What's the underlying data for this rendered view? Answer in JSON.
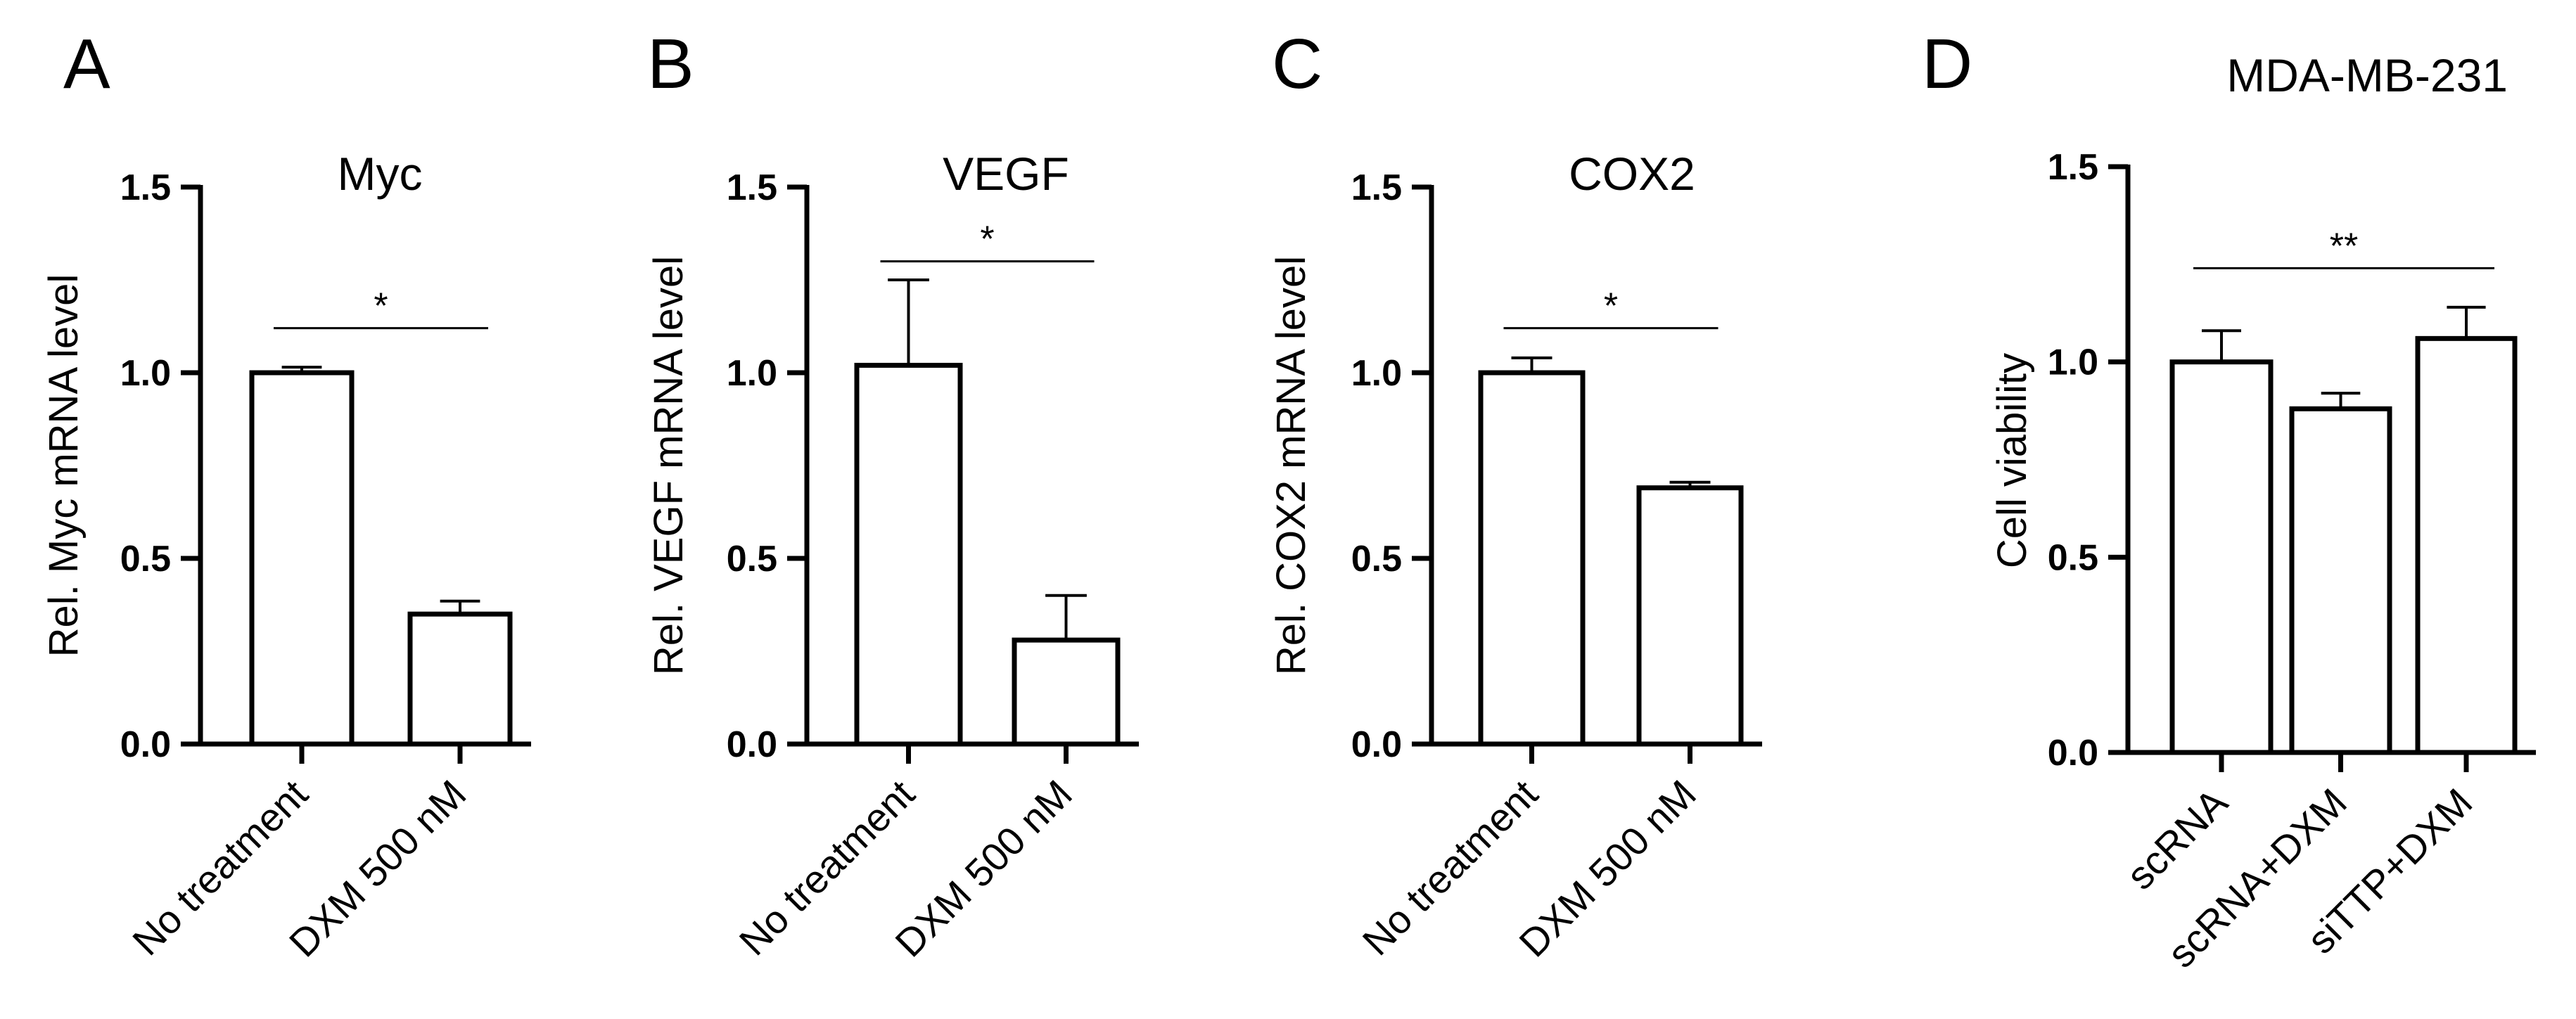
{
  "colors": {
    "bar_fill": "#ffffff",
    "stroke": "#000000",
    "background": "#ffffff"
  },
  "chart_data": [
    {
      "type": "bar",
      "panel_label": "A",
      "title": "Myc",
      "xlabel": "",
      "ylabel": "Rel. Myc mRNA level",
      "ylim": [
        0,
        1.5
      ],
      "yticks": [
        "0.0",
        "0.5",
        "1.0",
        "1.5"
      ],
      "categories": [
        "No treatment",
        "DXM 500 nM"
      ],
      "values": [
        1.0,
        0.35
      ],
      "errors": [
        0.015,
        0.035
      ],
      "significance": {
        "from": 0,
        "to": 1,
        "label": "*",
        "y": 1.12
      }
    },
    {
      "type": "bar",
      "panel_label": "B",
      "title": "VEGF",
      "xlabel": "",
      "ylabel": "Rel. VEGF mRNA level",
      "ylim": [
        0,
        1.5
      ],
      "yticks": [
        "0.0",
        "0.5",
        "1.0",
        "1.5"
      ],
      "categories": [
        "No treatment",
        "DXM 500 nM"
      ],
      "values": [
        1.02,
        0.28
      ],
      "errors": [
        0.23,
        0.12
      ],
      "significance": {
        "from": 0,
        "to": 1,
        "label": "*",
        "y": 1.3
      }
    },
    {
      "type": "bar",
      "panel_label": "C",
      "title": "COX2",
      "xlabel": "",
      "ylabel": "Rel. COX2 mRNA level",
      "ylim": [
        0,
        1.5
      ],
      "yticks": [
        "0.0",
        "0.5",
        "1.0",
        "1.5"
      ],
      "categories": [
        "No treatment",
        "DXM 500 nM"
      ],
      "values": [
        1.0,
        0.69
      ],
      "errors": [
        0.04,
        0.015
      ],
      "significance": {
        "from": 0,
        "to": 1,
        "label": "*",
        "y": 1.12
      }
    },
    {
      "type": "bar",
      "panel_label": "D",
      "title": "MDA-MB-231",
      "xlabel": "",
      "ylabel": "Cell viability",
      "ylim": [
        0,
        1.5
      ],
      "yticks": [
        "0.0",
        "0.5",
        "1.0",
        "1.5"
      ],
      "categories": [
        "scRNA",
        "scRNA+DXM",
        "siTTP+DXM"
      ],
      "values": [
        1.0,
        0.88,
        1.06
      ],
      "errors": [
        0.08,
        0.04,
        0.08
      ],
      "significance": {
        "from": 0,
        "to": 2,
        "label": "**",
        "y": 1.24
      }
    }
  ]
}
